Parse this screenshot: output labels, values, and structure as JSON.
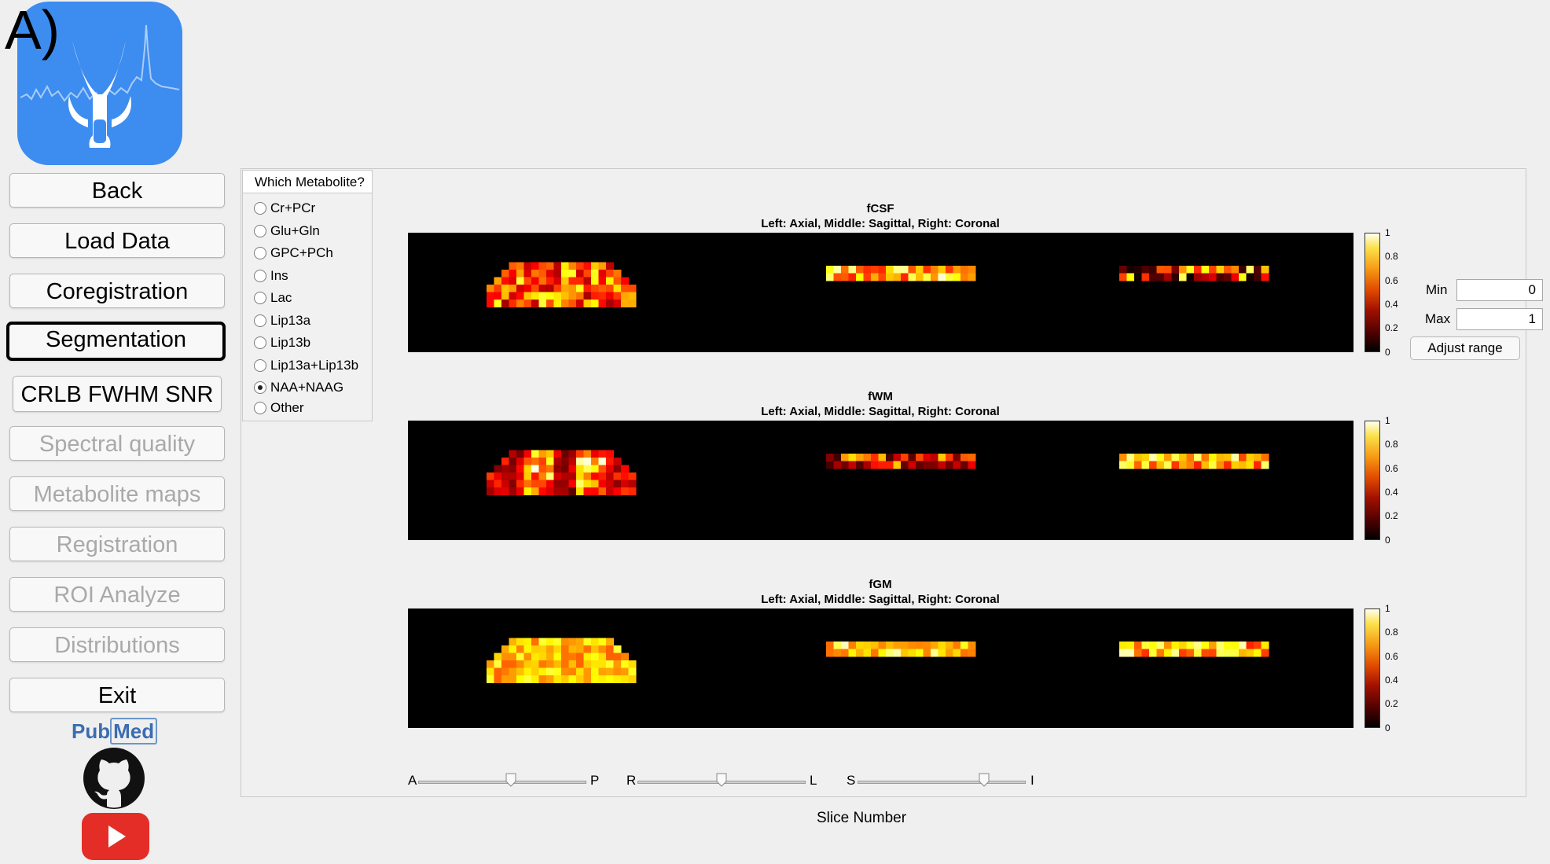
{
  "panel_label": "A)",
  "nav": {
    "back": "Back",
    "load_data": "Load Data",
    "coregistration": "Coregistration",
    "segmentation": "Segmentation",
    "crlb": "CRLB FWHM SNR",
    "spectral_quality": "Spectral quality",
    "metabolite_maps": "Metabolite maps",
    "registration": "Registration",
    "roi_analyze": "ROI Analyze",
    "distributions": "Distributions",
    "exit": "Exit"
  },
  "links": {
    "pubmed_a": "Pub",
    "pubmed_b": "Med"
  },
  "metabolite": {
    "title": "Which Metabolite?",
    "options": [
      "Cr+PCr",
      "Glu+Gln",
      "GPC+PCh",
      "Ins",
      "Lac",
      "Lip13a",
      "Lip13b",
      "Lip13a+Lip13b",
      "NAA+NAAG",
      "Other"
    ],
    "selected": "NAA+NAAG"
  },
  "plots": [
    {
      "name": "fCSF",
      "subtitle": "Left: Axial, Middle: Sagittal, Right: Coronal"
    },
    {
      "name": "fWM",
      "subtitle": "Left: Axial, Middle: Sagittal, Right: Coronal"
    },
    {
      "name": "fGM",
      "subtitle": "Left: Axial, Middle: Sagittal, Right: Coronal"
    }
  ],
  "colorbar": {
    "ticks": [
      "1",
      "0.8",
      "0.6",
      "0.4",
      "0.2",
      "0"
    ],
    "colormap": "hot"
  },
  "range": {
    "min_label": "Min",
    "min_value": "0",
    "max_label": "Max",
    "max_value": "1",
    "adjust_label": "Adjust range"
  },
  "sliders": [
    {
      "start": "A",
      "end": "P",
      "value": 0.55
    },
    {
      "start": "R",
      "end": "L",
      "value": 0.5
    },
    {
      "start": "S",
      "end": "I",
      "value": 0.75
    }
  ],
  "slice_label": "Slice Number"
}
